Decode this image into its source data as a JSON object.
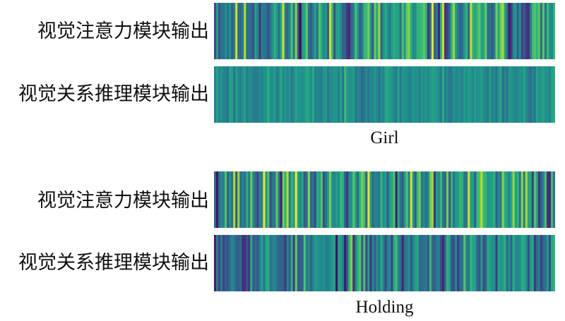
{
  "chart_data": {
    "type": "heatmap",
    "colormap": "viridis",
    "groups": [
      {
        "caption": "Girl",
        "rows": [
          {
            "label": "视觉注意力模块输出",
            "columns": 160,
            "mean": 0.5,
            "spread": 0.46,
            "seed": 11
          },
          {
            "label": "视觉关系推理模块输出",
            "columns": 160,
            "mean": 0.5,
            "spread": 0.14,
            "seed": 23
          }
        ]
      },
      {
        "caption": "Holding",
        "rows": [
          {
            "label": "视觉注意力模块输出",
            "columns": 160,
            "mean": 0.52,
            "spread": 0.44,
            "seed": 37
          },
          {
            "label": "视觉关系推理模块输出",
            "columns": 160,
            "mean": 0.42,
            "spread": 0.34,
            "seed": 53
          }
        ]
      }
    ]
  }
}
